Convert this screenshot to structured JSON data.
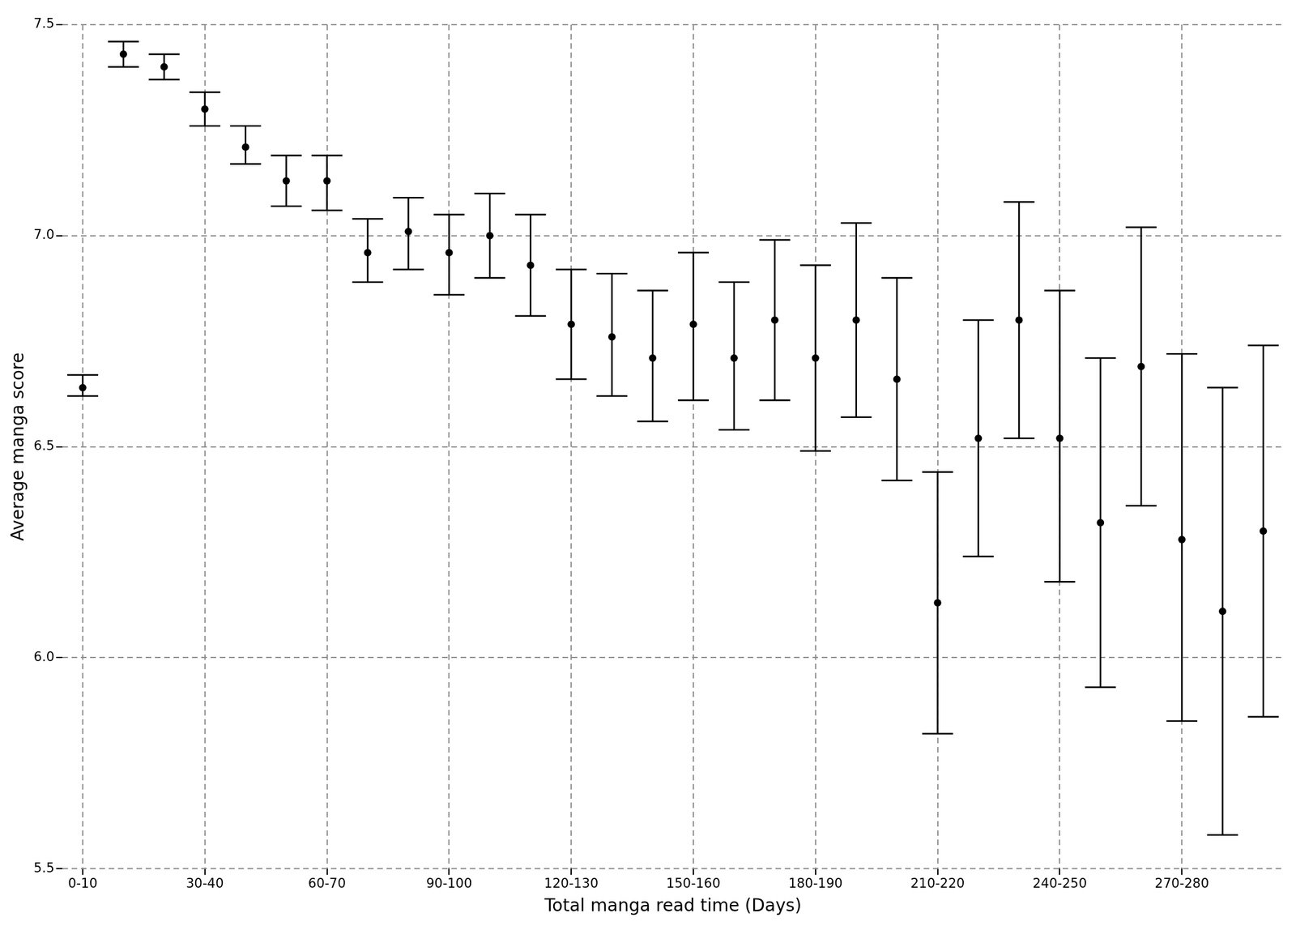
{
  "chart_data": {
    "type": "scatter",
    "x_label": "Total manga read time (Days)",
    "y_label": "Average manga score",
    "categories": [
      "0-10",
      null,
      null,
      "30-40",
      null,
      null,
      "60-70",
      null,
      null,
      "90-100",
      null,
      null,
      "120-130",
      null,
      null,
      "150-160",
      null,
      null,
      "180-190",
      null,
      null,
      "210-220",
      null,
      null,
      "240-250",
      null,
      null,
      "270-280",
      null,
      null
    ],
    "values": [
      6.64,
      7.43,
      7.4,
      7.3,
      7.21,
      7.13,
      7.13,
      6.96,
      7.01,
      6.96,
      7.0,
      6.93,
      6.79,
      6.76,
      6.71,
      6.79,
      6.71,
      6.8,
      6.71,
      6.8,
      6.66,
      6.13,
      6.52,
      6.8,
      6.52,
      6.32,
      6.69,
      6.28,
      6.11,
      6.3
    ],
    "error_low": [
      6.62,
      7.4,
      7.37,
      7.26,
      7.17,
      7.07,
      7.06,
      6.89,
      6.92,
      6.86,
      6.9,
      6.81,
      6.66,
      6.62,
      6.56,
      6.61,
      6.54,
      6.61,
      6.49,
      6.57,
      6.42,
      5.82,
      6.24,
      6.52,
      6.18,
      5.93,
      6.36,
      5.85,
      5.58,
      5.86
    ],
    "error_high": [
      6.67,
      7.46,
      7.43,
      7.34,
      7.26,
      7.19,
      7.19,
      7.04,
      7.09,
      7.05,
      7.1,
      7.05,
      6.92,
      6.91,
      6.87,
      6.96,
      6.89,
      6.99,
      6.93,
      7.03,
      6.9,
      6.44,
      6.8,
      7.08,
      6.87,
      6.71,
      7.02,
      6.72,
      6.64,
      6.74
    ],
    "color": "#000000",
    "marker": "circle",
    "ylim": [
      5.5,
      7.5
    ],
    "yticks": [
      5.5,
      {
        "value": 6,
        "label": "6.0"
      },
      6.5,
      {
        "value": 7,
        "label": "7.0"
      },
      7.5
    ],
    "grid": true
  }
}
